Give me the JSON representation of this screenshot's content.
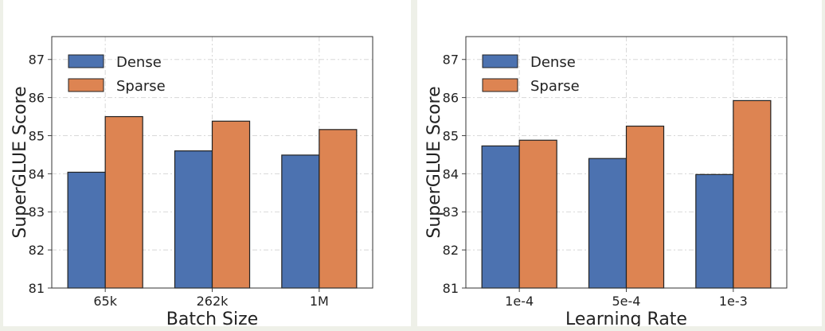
{
  "chart_data": [
    {
      "type": "bar",
      "xlabel": "Batch Size",
      "ylabel": "SuperGLUE Score",
      "categories": [
        "65k",
        "262k",
        "1M"
      ],
      "ylim": [
        81,
        87.6
      ],
      "yticks": [
        81,
        82,
        83,
        84,
        85,
        86,
        87
      ],
      "grid": true,
      "legend_position": "top-left",
      "series": [
        {
          "name": "Dense",
          "color": "#4c72b0",
          "values": [
            84.04,
            84.6,
            84.49
          ]
        },
        {
          "name": "Sparse",
          "color": "#dd8452",
          "values": [
            85.5,
            85.38,
            85.16
          ]
        }
      ]
    },
    {
      "type": "bar",
      "xlabel": "Learning Rate",
      "ylabel": "SuperGLUE Score",
      "categories": [
        "1e-4",
        "5e-4",
        "1e-3"
      ],
      "ylim": [
        81,
        87.6
      ],
      "yticks": [
        81,
        82,
        83,
        84,
        85,
        86,
        87
      ],
      "grid": true,
      "legend_position": "top-left",
      "series": [
        {
          "name": "Dense",
          "color": "#4c72b0",
          "values": [
            84.73,
            84.4,
            83.98
          ]
        },
        {
          "name": "Sparse",
          "color": "#dd8452",
          "values": [
            84.88,
            85.25,
            85.92
          ]
        }
      ]
    }
  ]
}
